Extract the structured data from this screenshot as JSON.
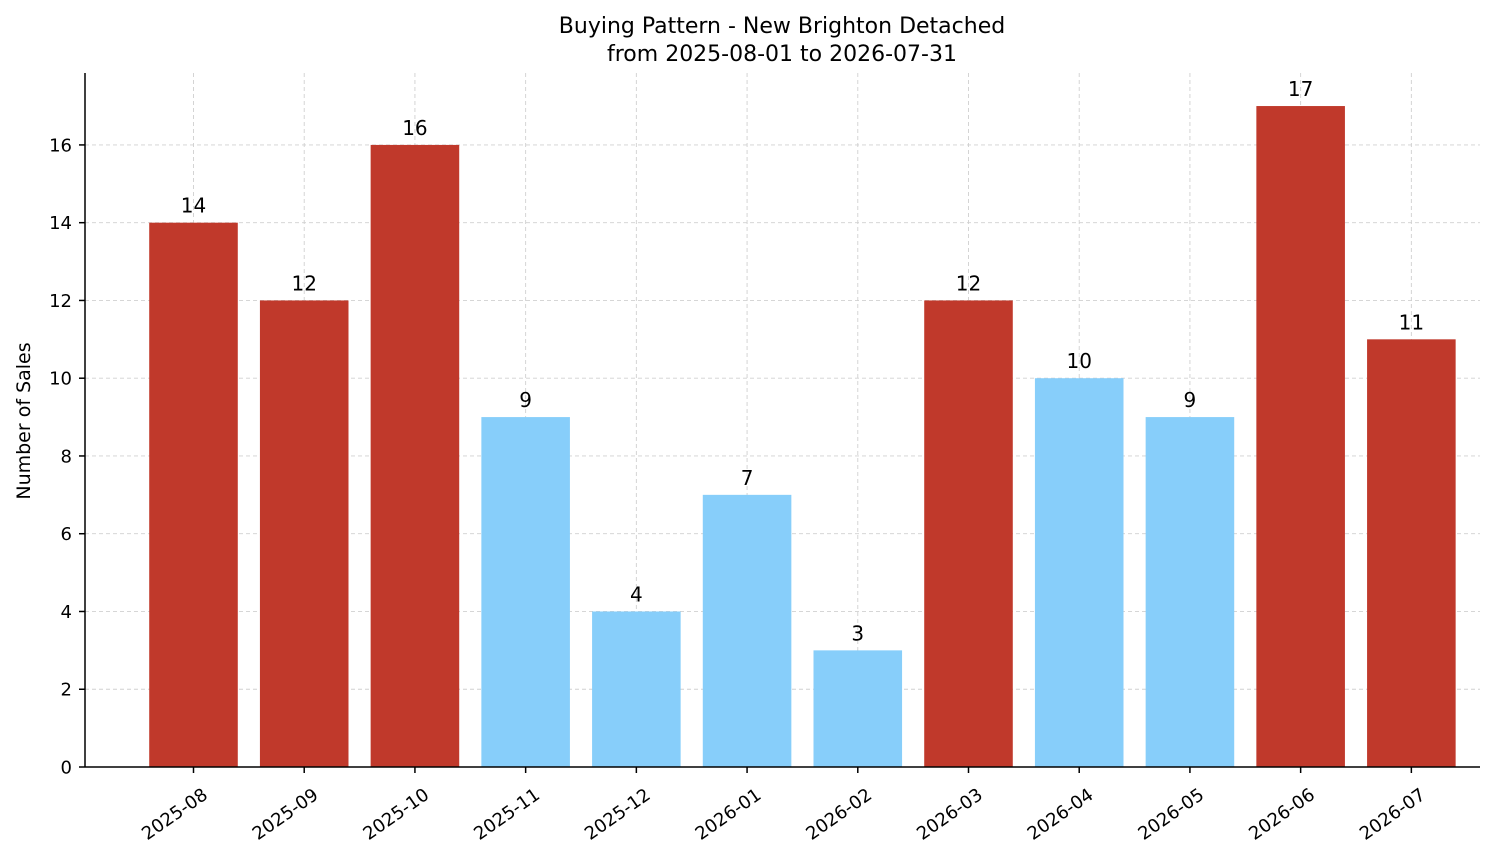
{
  "chart_data": {
    "type": "bar",
    "title": "Buying Pattern - New Brighton Detached",
    "subtitle": "from 2025-08-01 to 2026-07-31",
    "xlabel": "",
    "ylabel": "Number of Sales",
    "categories": [
      "2025-08",
      "2025-09",
      "2025-10",
      "2025-11",
      "2025-12",
      "2026-01",
      "2026-02",
      "2026-03",
      "2026-04",
      "2026-05",
      "2026-06",
      "2026-07"
    ],
    "values": [
      14,
      12,
      16,
      9,
      4,
      7,
      3,
      12,
      10,
      9,
      17,
      11
    ],
    "bar_colors": [
      "#c0392b",
      "#c0392b",
      "#c0392b",
      "#87cefa",
      "#87cefa",
      "#87cefa",
      "#87cefa",
      "#c0392b",
      "#87cefa",
      "#87cefa",
      "#c0392b",
      "#c0392b"
    ],
    "ylim": [
      0,
      17.85
    ],
    "yticks": [
      0,
      2,
      4,
      6,
      8,
      10,
      12,
      14,
      16
    ],
    "grid": true,
    "legend": "none"
  }
}
